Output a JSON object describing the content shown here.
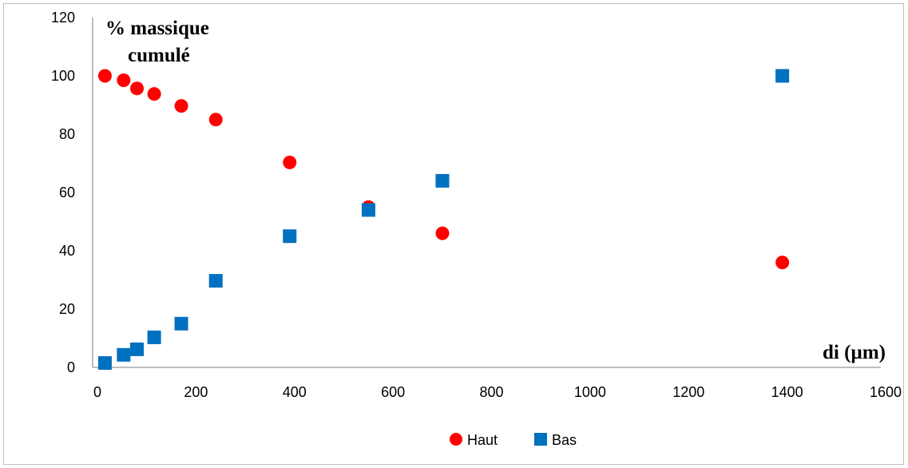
{
  "chart_data": {
    "type": "scatter",
    "title": "",
    "ylabel_lines": [
      "% massique",
      "cumulé"
    ],
    "xlabel": "di (µm)",
    "xlim": [
      0,
      1600
    ],
    "ylim": [
      0,
      120
    ],
    "x_ticks": [
      0,
      200,
      400,
      600,
      800,
      1000,
      1200,
      1400,
      1600
    ],
    "y_ticks": [
      0,
      20,
      40,
      60,
      80,
      100,
      120
    ],
    "grid": false,
    "legend_position": "bottom",
    "series": [
      {
        "name": "Haut",
        "marker": "circle",
        "color": "#ff0000",
        "x": [
          25,
          63,
          90,
          125,
          180,
          250,
          400,
          560,
          710,
          1400
        ],
        "y": [
          100,
          98.5,
          95.7,
          93.8,
          89.7,
          85,
          70.3,
          55,
          46,
          36
        ]
      },
      {
        "name": "Bas",
        "marker": "square",
        "color": "#0070c0",
        "x": [
          25,
          63,
          90,
          125,
          180,
          250,
          400,
          560,
          710,
          1400
        ],
        "y": [
          1.5,
          4.3,
          6.2,
          10.3,
          15,
          29.7,
          45,
          54,
          64,
          100
        ]
      }
    ]
  }
}
